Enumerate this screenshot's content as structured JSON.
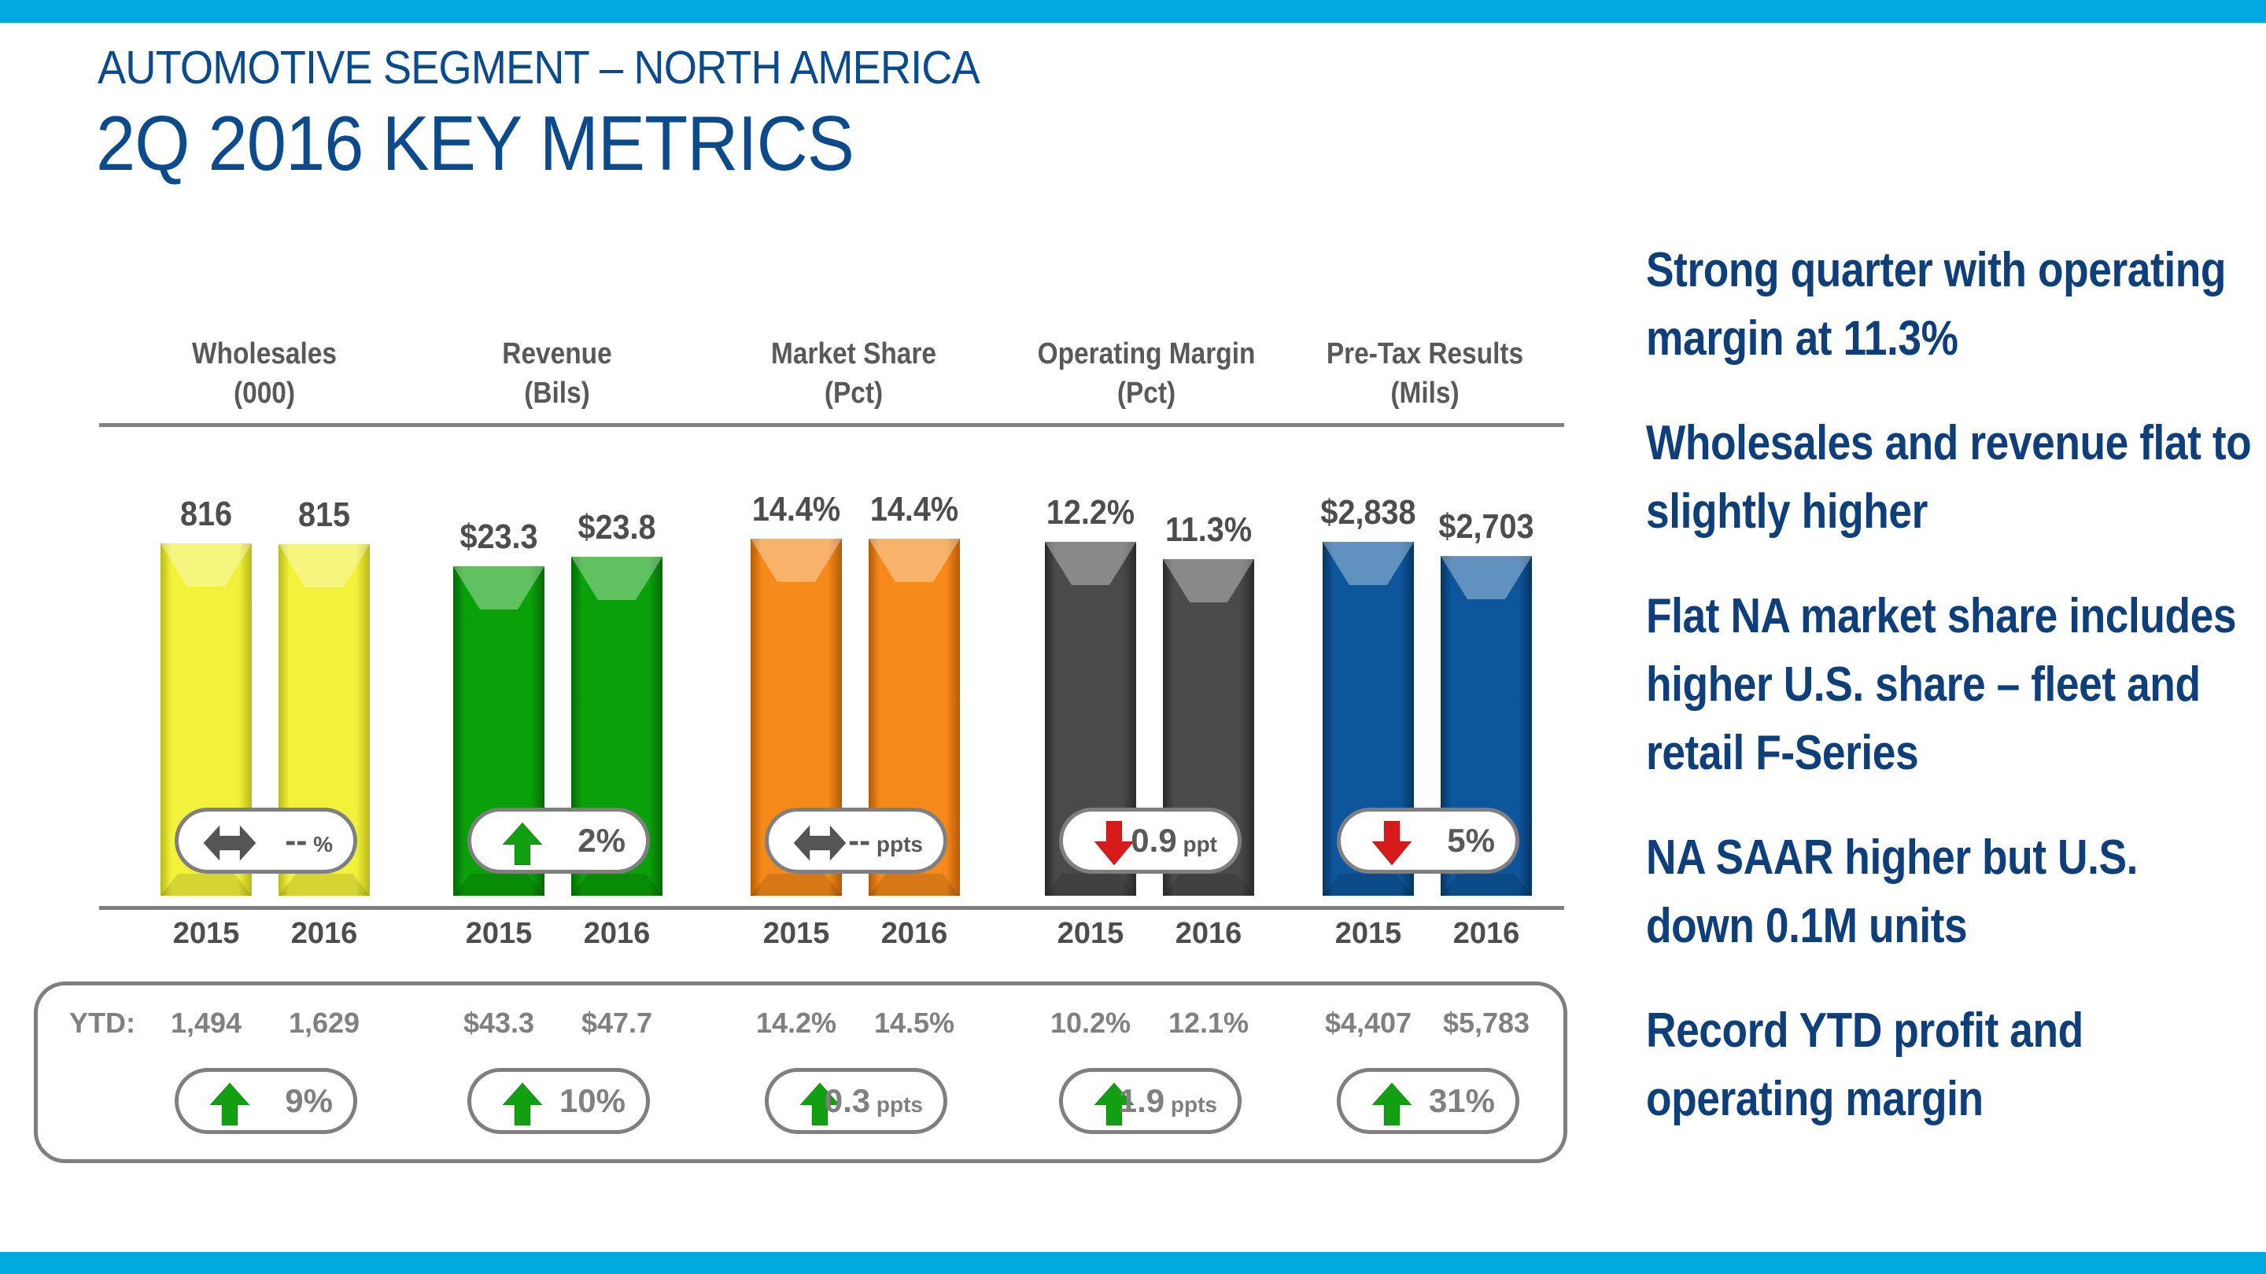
{
  "colors": {
    "accent_bar": "#00A9E0",
    "title": "#0B4A8B",
    "bullet_text": "#0F3F7A",
    "up_arrow": "#12A012",
    "down_arrow": "#D91A1A",
    "flat_arrow": "#555555"
  },
  "header": {
    "subtitle": "AUTOMOTIVE SEGMENT – NORTH AMERICA",
    "title": "2Q 2016 KEY METRICS"
  },
  "ytd_label": "YTD:",
  "bullets": [
    "Strong quarter with operating margin at 11.3%",
    "Wholesales and revenue flat to slightly higher",
    "Flat NA market share includes higher U.S. share – fleet and retail F-Series",
    "NA SAAR higher but U.S. down 0.1M units",
    "Record YTD profit and operating margin"
  ],
  "chart_data": {
    "type": "bar",
    "title": "2Q 2016 KEY METRICS",
    "categories": [
      "2015",
      "2016"
    ],
    "metrics": [
      {
        "name": "Wholesales",
        "unit": "(000)",
        "color": "#F2F23A",
        "dark": "#B8B81A",
        "values": [
          816,
          815
        ],
        "labels": [
          "816",
          "815"
        ],
        "ylim": [
          0,
          838
        ],
        "change": {
          "direction": "flat",
          "value": "--",
          "unit": "%"
        },
        "ytd": {
          "values": [
            "1,494",
            "1,629"
          ],
          "change": {
            "direction": "up",
            "value": "9%",
            "unit": ""
          }
        }
      },
      {
        "name": "Revenue",
        "unit": "(Bils)",
        "color": "#0AA00A",
        "dark": "#056A05",
        "values": [
          23.3,
          23.8
        ],
        "labels": [
          "$23.3",
          "$23.8"
        ],
        "ylim": [
          5.8,
          25.0
        ],
        "change": {
          "direction": "up",
          "value": "2%",
          "unit": ""
        },
        "ytd": {
          "values": [
            "$43.3",
            "$47.7"
          ],
          "change": {
            "direction": "up",
            "value": "10%",
            "unit": ""
          }
        }
      },
      {
        "name": "Market Share",
        "unit": "(Pct)",
        "color": "#F5891A",
        "dark": "#B35A08",
        "values": [
          14.4,
          14.4
        ],
        "labels": [
          "14.4%",
          "14.4%"
        ],
        "ylim": [
          0,
          14.6
        ],
        "change": {
          "direction": "flat",
          "value": "--",
          "unit": "ppts"
        },
        "ytd": {
          "values": [
            "14.2%",
            "14.5%"
          ],
          "change": {
            "direction": "up",
            "value": "0.3",
            "unit": "ppts"
          }
        }
      },
      {
        "name": "Operating Margin",
        "unit": "(Pct)",
        "color": "#4A4A4A",
        "dark": "#2A2A2A",
        "values": [
          12.2,
          11.3
        ],
        "labels": [
          "12.2%",
          "11.3%"
        ],
        "ylim": [
          -6.2,
          12.6
        ],
        "change": {
          "direction": "down",
          "value": "0.9",
          "unit": "ppt"
        },
        "ytd": {
          "values": [
            "10.2%",
            "12.1%"
          ],
          "change": {
            "direction": "up",
            "value": "1.9",
            "unit": "ppts"
          }
        }
      },
      {
        "name": "Pre-Tax Results",
        "unit": "(Mils)",
        "color": "#0D569B",
        "dark": "#073563",
        "values": [
          2838,
          2703
        ],
        "labels": [
          "$2,838",
          "$2,703"
        ],
        "ylim": [
          -540,
          2910
        ],
        "change": {
          "direction": "down",
          "value": "5%",
          "unit": ""
        },
        "ytd": {
          "values": [
            "$4,407",
            "$5,783"
          ],
          "change": {
            "direction": "up",
            "value": "31%",
            "unit": ""
          }
        }
      }
    ]
  }
}
